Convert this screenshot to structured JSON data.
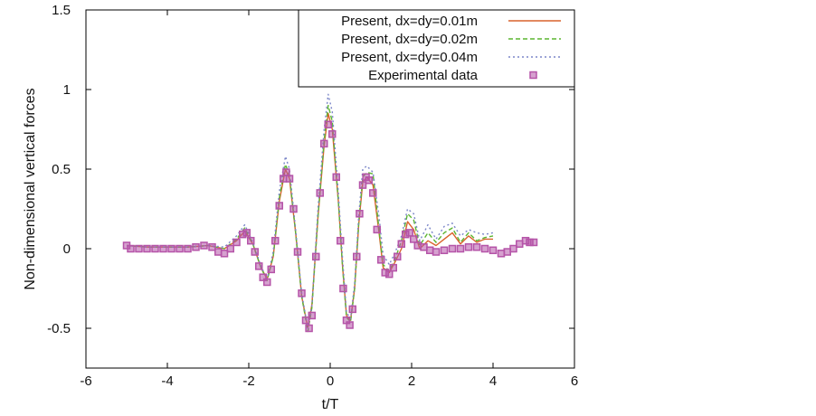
{
  "chart_data": {
    "type": "line",
    "title": "",
    "xlabel": "t/T",
    "ylabel": "Non-dimensional vertical forces",
    "xlim": [
      -6,
      6
    ],
    "ylim": [
      -0.75,
      1.5
    ],
    "xticks": [
      -6,
      -4,
      -2,
      0,
      2,
      4,
      6
    ],
    "xtick_labels": [
      "-6",
      "-4",
      "-2",
      "0",
      "2",
      "4",
      "6"
    ],
    "yticks": [
      -0.5,
      0,
      0.5,
      1,
      1.5
    ],
    "ytick_labels": [
      "-0.5",
      "0",
      "0.5",
      "1",
      "1.5"
    ],
    "grid": false,
    "legend_position": "top-right",
    "series": [
      {
        "name": "Present, dx=dy=0.01m",
        "style": "solid",
        "color": "#d9622b",
        "points": [
          [
            -5,
            0.02
          ],
          [
            -4.5,
            0.01
          ],
          [
            -4,
            0.01
          ],
          [
            -3.5,
            0.01
          ],
          [
            -3,
            0.02
          ],
          [
            -2.6,
            0.0
          ],
          [
            -2.3,
            0.05
          ],
          [
            -2.1,
            0.11
          ],
          [
            -1.9,
            0.03
          ],
          [
            -1.7,
            -0.12
          ],
          [
            -1.55,
            -0.19
          ],
          [
            -1.4,
            -0.05
          ],
          [
            -1.25,
            0.3
          ],
          [
            -1.1,
            0.5
          ],
          [
            -1.0,
            0.44
          ],
          [
            -0.85,
            0.1
          ],
          [
            -0.7,
            -0.3
          ],
          [
            -0.55,
            -0.5
          ],
          [
            -0.45,
            -0.35
          ],
          [
            -0.3,
            0.2
          ],
          [
            -0.15,
            0.65
          ],
          [
            -0.05,
            0.85
          ],
          [
            0.05,
            0.75
          ],
          [
            0.2,
            0.3
          ],
          [
            0.3,
            -0.1
          ],
          [
            0.4,
            -0.42
          ],
          [
            0.5,
            -0.45
          ],
          [
            0.6,
            -0.25
          ],
          [
            0.7,
            0.15
          ],
          [
            0.8,
            0.42
          ],
          [
            0.9,
            0.45
          ],
          [
            1.05,
            0.4
          ],
          [
            1.2,
            0.1
          ],
          [
            1.3,
            -0.12
          ],
          [
            1.45,
            -0.15
          ],
          [
            1.6,
            -0.08
          ],
          [
            1.75,
            0.0
          ],
          [
            1.9,
            0.17
          ],
          [
            2.05,
            0.12
          ],
          [
            2.2,
            0.0
          ],
          [
            2.4,
            0.05
          ],
          [
            2.6,
            0.02
          ],
          [
            2.8,
            0.06
          ],
          [
            3.0,
            0.1
          ],
          [
            3.2,
            0.03
          ],
          [
            3.4,
            0.08
          ],
          [
            3.6,
            0.04
          ],
          [
            3.8,
            0.06
          ],
          [
            4.0,
            0.06
          ]
        ]
      },
      {
        "name": "Present, dx=dy=0.02m",
        "style": "dashed",
        "color": "#5cb531",
        "points": [
          [
            -5,
            0.02
          ],
          [
            -4.5,
            0.01
          ],
          [
            -4,
            0.01
          ],
          [
            -3.5,
            0.01
          ],
          [
            -3,
            0.02
          ],
          [
            -2.6,
            0.0
          ],
          [
            -2.3,
            0.06
          ],
          [
            -2.1,
            0.13
          ],
          [
            -1.9,
            0.03
          ],
          [
            -1.7,
            -0.12
          ],
          [
            -1.55,
            -0.2
          ],
          [
            -1.4,
            -0.05
          ],
          [
            -1.25,
            0.32
          ],
          [
            -1.1,
            0.53
          ],
          [
            -1.0,
            0.46
          ],
          [
            -0.85,
            0.1
          ],
          [
            -0.7,
            -0.3
          ],
          [
            -0.55,
            -0.52
          ],
          [
            -0.45,
            -0.37
          ],
          [
            -0.3,
            0.2
          ],
          [
            -0.15,
            0.68
          ],
          [
            -0.05,
            0.9
          ],
          [
            0.05,
            0.8
          ],
          [
            0.2,
            0.3
          ],
          [
            0.3,
            -0.1
          ],
          [
            0.4,
            -0.43
          ],
          [
            0.5,
            -0.46
          ],
          [
            0.6,
            -0.25
          ],
          [
            0.7,
            0.16
          ],
          [
            0.8,
            0.45
          ],
          [
            0.9,
            0.48
          ],
          [
            1.05,
            0.47
          ],
          [
            1.2,
            0.12
          ],
          [
            1.3,
            -0.1
          ],
          [
            1.45,
            -0.14
          ],
          [
            1.6,
            -0.06
          ],
          [
            1.75,
            0.05
          ],
          [
            1.9,
            0.22
          ],
          [
            2.05,
            0.18
          ],
          [
            2.2,
            0.02
          ],
          [
            2.4,
            0.1
          ],
          [
            2.6,
            0.04
          ],
          [
            2.8,
            0.1
          ],
          [
            3.0,
            0.13
          ],
          [
            3.2,
            0.04
          ],
          [
            3.4,
            0.1
          ],
          [
            3.6,
            0.05
          ],
          [
            3.8,
            0.07
          ],
          [
            4.0,
            0.08
          ]
        ]
      },
      {
        "name": "Present, dx=dy=0.04m",
        "style": "dotted",
        "color": "#7b86c8",
        "points": [
          [
            -5,
            0.02
          ],
          [
            -4.5,
            0.01
          ],
          [
            -4,
            0.01
          ],
          [
            -3.5,
            0.01
          ],
          [
            -3,
            0.02
          ],
          [
            -2.6,
            0.01
          ],
          [
            -2.3,
            0.08
          ],
          [
            -2.1,
            0.15
          ],
          [
            -1.9,
            0.04
          ],
          [
            -1.7,
            -0.11
          ],
          [
            -1.55,
            -0.19
          ],
          [
            -1.4,
            -0.02
          ],
          [
            -1.25,
            0.36
          ],
          [
            -1.1,
            0.58
          ],
          [
            -1.0,
            0.5
          ],
          [
            -0.85,
            0.12
          ],
          [
            -0.7,
            -0.28
          ],
          [
            -0.55,
            -0.5
          ],
          [
            -0.45,
            -0.36
          ],
          [
            -0.3,
            0.25
          ],
          [
            -0.15,
            0.75
          ],
          [
            -0.05,
            0.97
          ],
          [
            0.05,
            0.86
          ],
          [
            0.2,
            0.35
          ],
          [
            0.3,
            -0.05
          ],
          [
            0.4,
            -0.4
          ],
          [
            0.5,
            -0.44
          ],
          [
            0.6,
            -0.22
          ],
          [
            0.7,
            0.2
          ],
          [
            0.8,
            0.5
          ],
          [
            0.9,
            0.52
          ],
          [
            1.05,
            0.48
          ],
          [
            1.2,
            0.2
          ],
          [
            1.3,
            -0.04
          ],
          [
            1.45,
            -0.1
          ],
          [
            1.6,
            -0.02
          ],
          [
            1.75,
            0.08
          ],
          [
            1.9,
            0.25
          ],
          [
            2.05,
            0.22
          ],
          [
            2.2,
            0.05
          ],
          [
            2.4,
            0.15
          ],
          [
            2.6,
            0.06
          ],
          [
            2.8,
            0.14
          ],
          [
            3.0,
            0.16
          ],
          [
            3.2,
            0.08
          ],
          [
            3.4,
            0.12
          ],
          [
            3.6,
            0.1
          ],
          [
            3.8,
            0.09
          ],
          [
            4.0,
            0.1
          ]
        ]
      },
      {
        "name": "Experimental data",
        "style": "markers",
        "color": "#b554a8",
        "points": [
          [
            -5,
            0.02
          ],
          [
            -4.9,
            0.0
          ],
          [
            -4.7,
            0.0
          ],
          [
            -4.5,
            0.0
          ],
          [
            -4.3,
            0.0
          ],
          [
            -4.1,
            0.0
          ],
          [
            -3.9,
            0.0
          ],
          [
            -3.7,
            0.0
          ],
          [
            -3.5,
            0.0
          ],
          [
            -3.3,
            0.01
          ],
          [
            -3.1,
            0.02
          ],
          [
            -2.9,
            0.01
          ],
          [
            -2.75,
            -0.02
          ],
          [
            -2.6,
            -0.03
          ],
          [
            -2.45,
            0.0
          ],
          [
            -2.3,
            0.04
          ],
          [
            -2.15,
            0.09
          ],
          [
            -2.05,
            0.1
          ],
          [
            -1.95,
            0.05
          ],
          [
            -1.85,
            -0.02
          ],
          [
            -1.75,
            -0.11
          ],
          [
            -1.65,
            -0.18
          ],
          [
            -1.55,
            -0.21
          ],
          [
            -1.45,
            -0.13
          ],
          [
            -1.35,
            0.05
          ],
          [
            -1.25,
            0.27
          ],
          [
            -1.15,
            0.44
          ],
          [
            -1.08,
            0.48
          ],
          [
            -1.0,
            0.44
          ],
          [
            -0.9,
            0.25
          ],
          [
            -0.8,
            -0.02
          ],
          [
            -0.7,
            -0.28
          ],
          [
            -0.6,
            -0.45
          ],
          [
            -0.52,
            -0.5
          ],
          [
            -0.45,
            -0.42
          ],
          [
            -0.35,
            -0.05
          ],
          [
            -0.25,
            0.35
          ],
          [
            -0.15,
            0.66
          ],
          [
            -0.05,
            0.78
          ],
          [
            0.05,
            0.72
          ],
          [
            0.15,
            0.45
          ],
          [
            0.25,
            0.05
          ],
          [
            0.32,
            -0.25
          ],
          [
            0.4,
            -0.45
          ],
          [
            0.48,
            -0.48
          ],
          [
            0.55,
            -0.38
          ],
          [
            0.65,
            -0.05
          ],
          [
            0.72,
            0.22
          ],
          [
            0.8,
            0.4
          ],
          [
            0.88,
            0.45
          ],
          [
            0.95,
            0.43
          ],
          [
            1.05,
            0.35
          ],
          [
            1.15,
            0.12
          ],
          [
            1.25,
            -0.07
          ],
          [
            1.35,
            -0.15
          ],
          [
            1.45,
            -0.16
          ],
          [
            1.55,
            -0.12
          ],
          [
            1.65,
            -0.05
          ],
          [
            1.75,
            0.03
          ],
          [
            1.85,
            0.09
          ],
          [
            1.95,
            0.1
          ],
          [
            2.05,
            0.06
          ],
          [
            2.15,
            0.02
          ],
          [
            2.3,
            0.01
          ],
          [
            2.45,
            -0.01
          ],
          [
            2.6,
            -0.02
          ],
          [
            2.8,
            -0.01
          ],
          [
            3.0,
            0.0
          ],
          [
            3.2,
            0.0
          ],
          [
            3.4,
            0.01
          ],
          [
            3.6,
            0.01
          ],
          [
            3.8,
            0.0
          ],
          [
            4.0,
            -0.01
          ],
          [
            4.2,
            -0.03
          ],
          [
            4.35,
            -0.02
          ],
          [
            4.5,
            0.0
          ],
          [
            4.65,
            0.03
          ],
          [
            4.8,
            0.05
          ],
          [
            4.9,
            0.04
          ],
          [
            5.0,
            0.04
          ]
        ]
      }
    ]
  }
}
